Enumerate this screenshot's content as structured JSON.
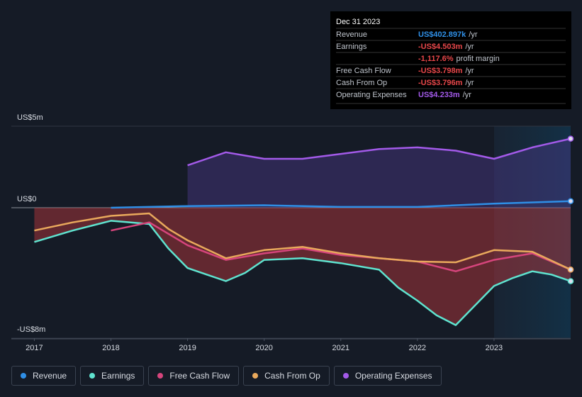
{
  "chart_data": {
    "type": "line",
    "xlim": [
      2016.7,
      2024.0
    ],
    "xticks": [
      2017,
      2018,
      2019,
      2020,
      2021,
      2022,
      2023
    ],
    "ylim": [
      -8,
      5
    ],
    "yticks": [
      {
        "value": 5,
        "label": "US$5m"
      },
      {
        "value": 0,
        "label": "US$0"
      },
      {
        "value": -8,
        "label": "-US$8m"
      }
    ],
    "series": [
      {
        "name": "Revenue",
        "color": "#2f8fe6",
        "x": [
          2018,
          2019,
          2020,
          2021,
          2022,
          2023,
          2024
        ],
        "values": [
          0.0,
          0.1,
          0.15,
          0.05,
          0.05,
          0.25,
          0.403
        ]
      },
      {
        "name": "Earnings",
        "color": "#5fe3cf",
        "x": [
          2017,
          2017.5,
          2018,
          2018.5,
          2018.75,
          2019,
          2019.25,
          2019.5,
          2019.75,
          2020,
          2020.5,
          2021,
          2021.5,
          2021.75,
          2022,
          2022.25,
          2022.5,
          2022.75,
          2023,
          2023.25,
          2023.5,
          2023.75,
          2024
        ],
        "values": [
          -2.1,
          -1.4,
          -0.8,
          -1.0,
          -2.5,
          -3.7,
          -4.1,
          -4.5,
          -4.0,
          -3.2,
          -3.1,
          -3.4,
          -3.8,
          -4.9,
          -5.7,
          -6.6,
          -7.2,
          -6.0,
          -4.8,
          -4.3,
          -3.9,
          -4.1,
          -4.503
        ]
      },
      {
        "name": "Free Cash Flow",
        "color": "#d6457c",
        "x": [
          2018,
          2018.5,
          2018.75,
          2019,
          2019.5,
          2020,
          2020.5,
          2021,
          2021.5,
          2022,
          2022.5,
          2023,
          2023.5,
          2024
        ],
        "values": [
          -1.4,
          -0.9,
          -1.6,
          -2.3,
          -3.2,
          -2.8,
          -2.5,
          -2.9,
          -3.1,
          -3.3,
          -3.9,
          -3.2,
          -2.8,
          -3.798
        ]
      },
      {
        "name": "Cash From Op",
        "color": "#e9a95c",
        "x": [
          2017,
          2017.5,
          2018,
          2018.5,
          2018.75,
          2019,
          2019.5,
          2020,
          2020.5,
          2021,
          2021.5,
          2022,
          2022.5,
          2023,
          2023.5,
          2024
        ],
        "values": [
          -1.4,
          -0.9,
          -0.5,
          -0.35,
          -1.3,
          -2.0,
          -3.1,
          -2.6,
          -2.4,
          -2.8,
          -3.1,
          -3.3,
          -3.35,
          -2.6,
          -2.7,
          -3.796
        ]
      },
      {
        "name": "Operating Expenses",
        "color": "#a35ae9",
        "x": [
          2019,
          2019.25,
          2019.5,
          2020,
          2020.5,
          2021,
          2021.5,
          2022,
          2022.5,
          2023,
          2023.5,
          2024
        ],
        "values": [
          2.6,
          3.0,
          3.4,
          3.0,
          3.0,
          3.3,
          3.6,
          3.7,
          3.5,
          3.0,
          3.7,
          4.233
        ]
      }
    ]
  },
  "tooltip": {
    "title": "Dec 31 2023",
    "rows": [
      {
        "label": "Revenue",
        "value": "US$402.897k",
        "unit": "/yr",
        "color": "#2f8fe6"
      },
      {
        "label": "Earnings",
        "value": "-US$4.503m",
        "unit": "/yr",
        "color": "#e8474a"
      },
      {
        "value": "-1,117.6%",
        "unit": "profit margin",
        "color": "#e8474a"
      },
      {
        "label": "Free Cash Flow",
        "value": "-US$3.798m",
        "unit": "/yr",
        "color": "#e8474a"
      },
      {
        "label": "Cash From Op",
        "value": "-US$3.796m",
        "unit": "/yr",
        "color": "#e8474a"
      },
      {
        "label": "Operating Expenses",
        "value": "US$4.233m",
        "unit": "/yr",
        "color": "#a35ae9"
      }
    ]
  }
}
